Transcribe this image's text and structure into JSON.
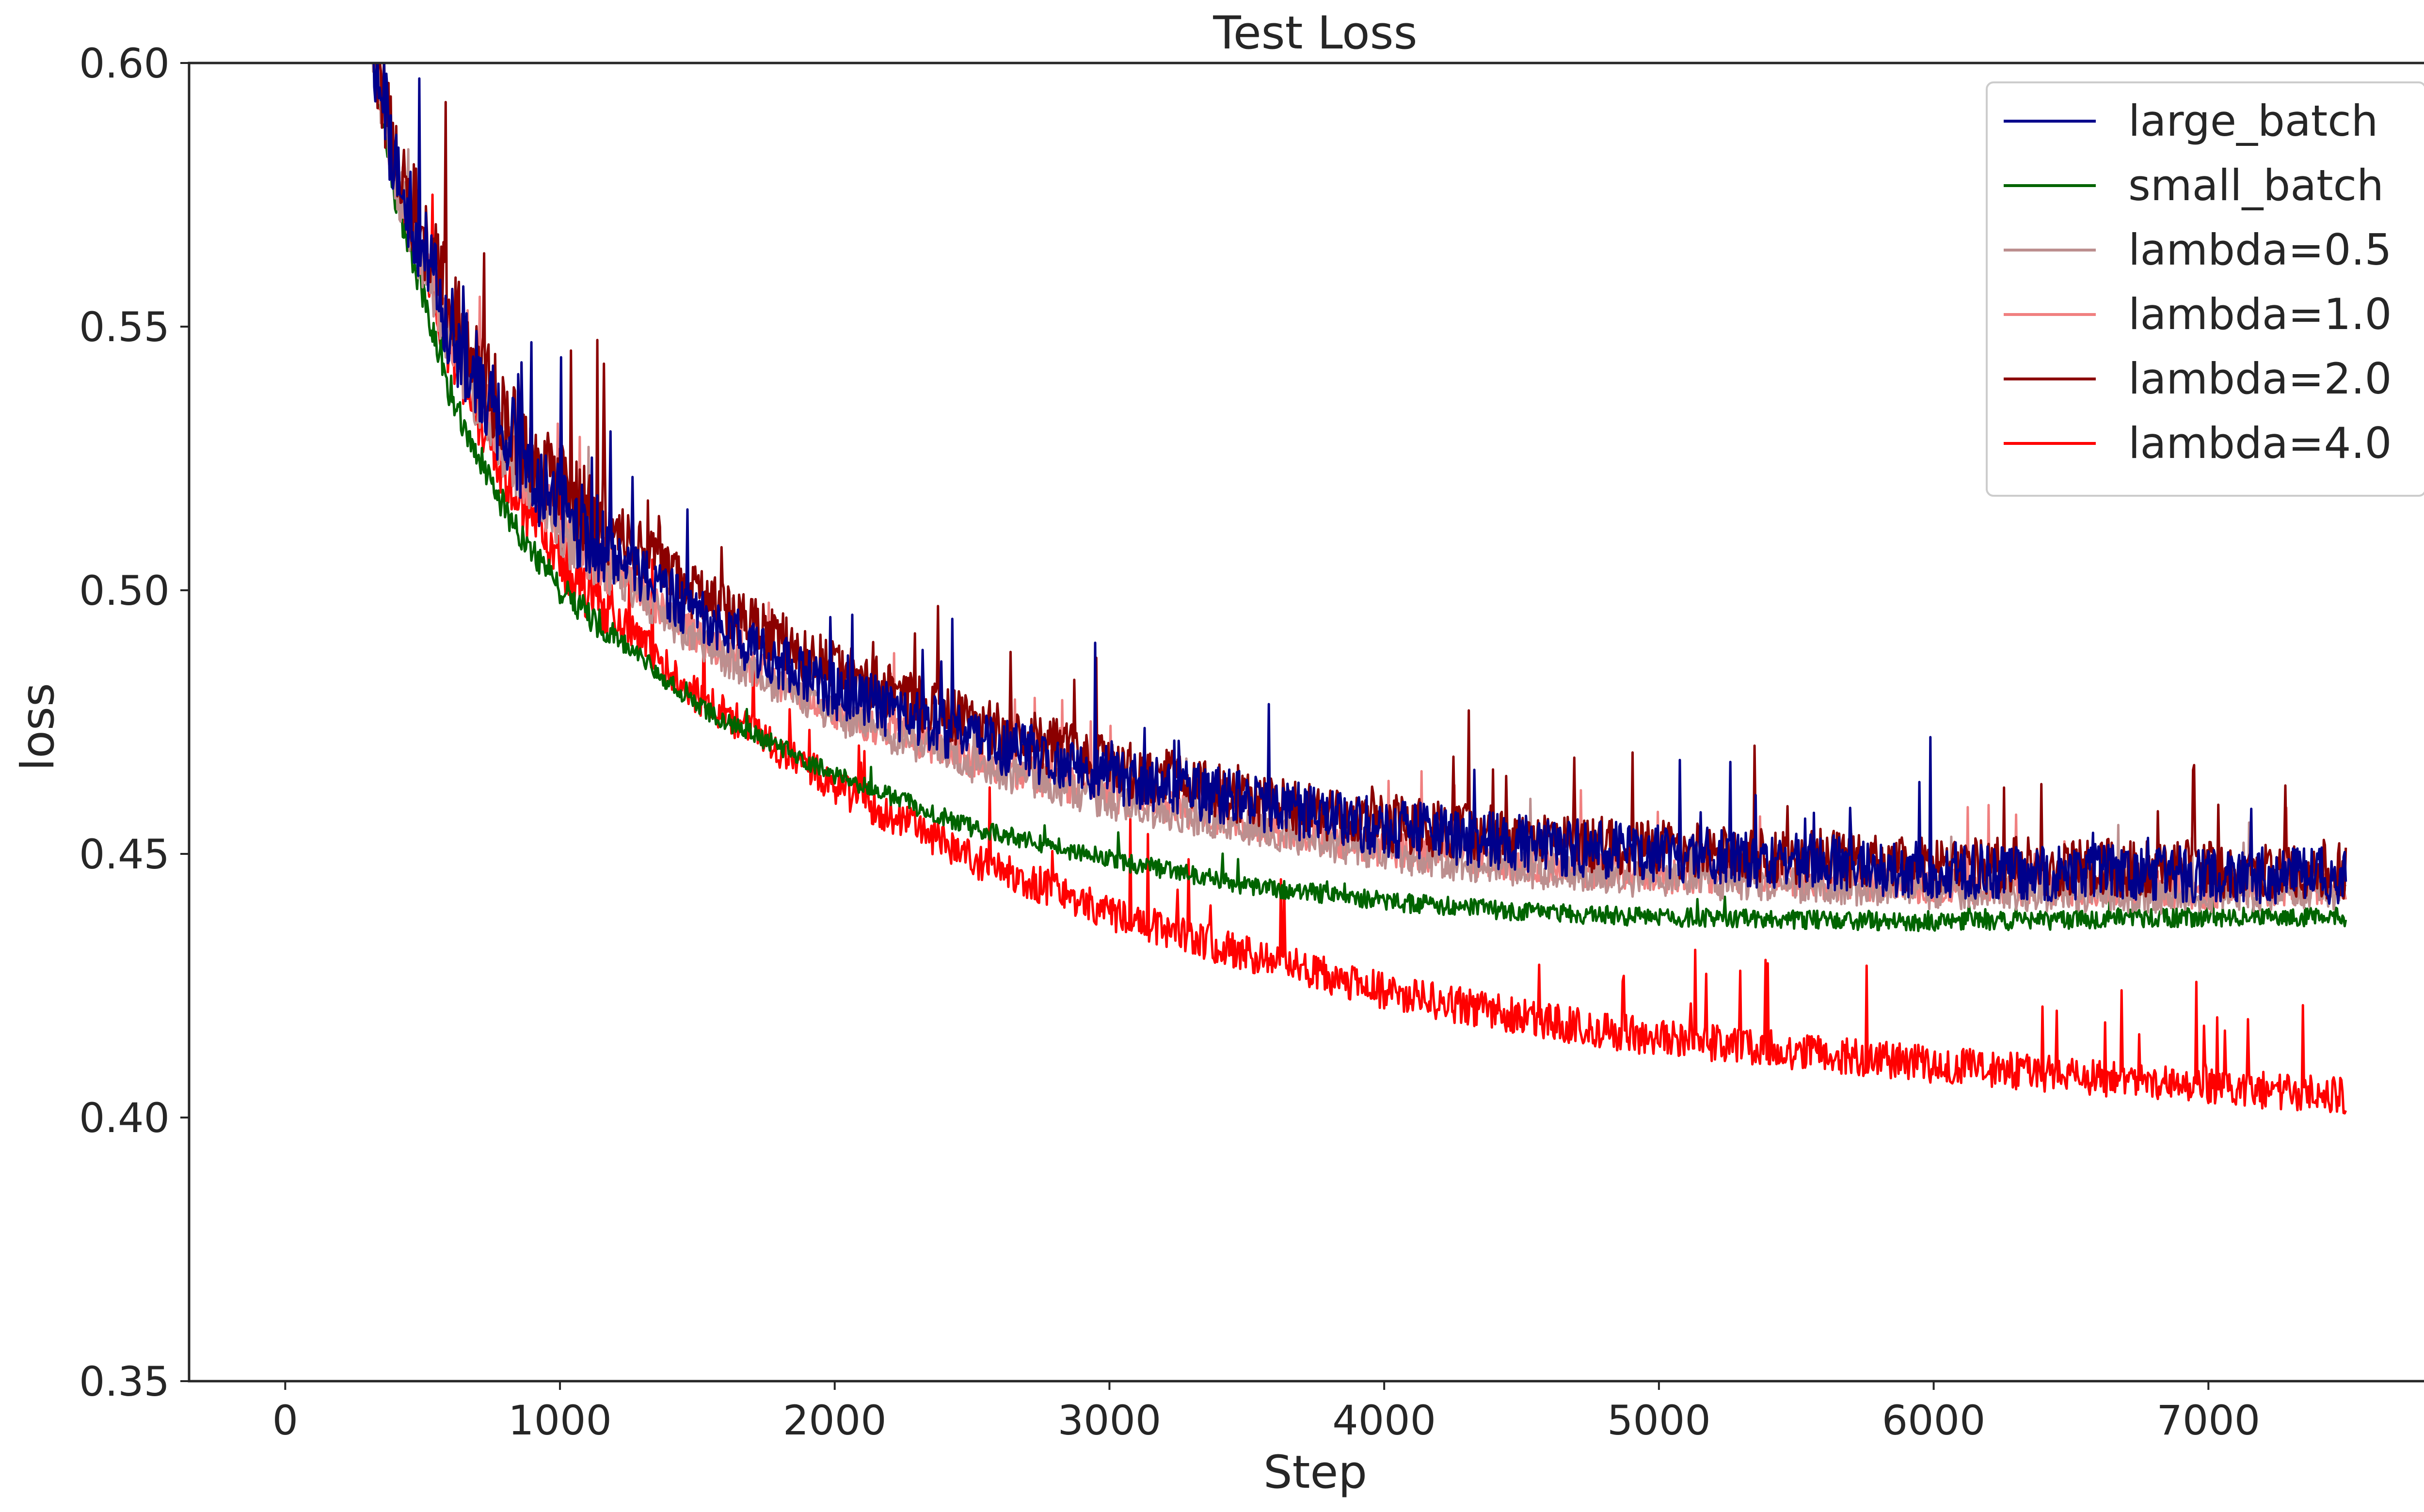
{
  "chart_data": {
    "type": "line",
    "title": "Test Loss",
    "xlabel": "Step",
    "ylabel": "loss",
    "xlim": [
      -350,
      7850
    ],
    "ylim": [
      0.35,
      0.6
    ],
    "xticks": [
      0,
      1000,
      2000,
      3000,
      4000,
      5000,
      6000,
      7000
    ],
    "yticks": [
      0.35,
      0.4,
      0.45,
      0.5,
      0.55,
      0.6
    ],
    "grid": false,
    "legend": "top-right",
    "series": [
      {
        "name": "large_batch",
        "color": "#00008b",
        "noise": 0.0055,
        "spike": 0.02,
        "points": [
          [
            280,
            0.615
          ],
          [
            400,
            0.58
          ],
          [
            600,
            0.55
          ],
          [
            800,
            0.53
          ],
          [
            1000,
            0.515
          ],
          [
            1500,
            0.495
          ],
          [
            2000,
            0.481
          ],
          [
            2500,
            0.472
          ],
          [
            3000,
            0.465
          ],
          [
            3500,
            0.46
          ],
          [
            4000,
            0.455
          ],
          [
            4500,
            0.452
          ],
          [
            5000,
            0.45
          ],
          [
            6000,
            0.447
          ],
          [
            7000,
            0.446
          ],
          [
            7500,
            0.446
          ]
        ]
      },
      {
        "name": "small_batch",
        "color": "#006400",
        "noise": 0.0018,
        "spike": 0.004,
        "points": [
          [
            280,
            0.615
          ],
          [
            400,
            0.575
          ],
          [
            600,
            0.537
          ],
          [
            800,
            0.515
          ],
          [
            1000,
            0.5
          ],
          [
            1500,
            0.478
          ],
          [
            2000,
            0.465
          ],
          [
            2500,
            0.455
          ],
          [
            3000,
            0.449
          ],
          [
            3500,
            0.444
          ],
          [
            4000,
            0.441
          ],
          [
            4500,
            0.439
          ],
          [
            5000,
            0.438
          ],
          [
            6000,
            0.437
          ],
          [
            7000,
            0.438
          ],
          [
            7500,
            0.438
          ]
        ]
      },
      {
        "name": "lambda=0.5",
        "color": "#bc8f8f",
        "noise": 0.0035,
        "spike": 0.012,
        "points": [
          [
            280,
            0.615
          ],
          [
            400,
            0.578
          ],
          [
            600,
            0.546
          ],
          [
            800,
            0.526
          ],
          [
            1000,
            0.511
          ],
          [
            1500,
            0.49
          ],
          [
            2000,
            0.476
          ],
          [
            2500,
            0.467
          ],
          [
            3000,
            0.46
          ],
          [
            3500,
            0.455
          ],
          [
            4000,
            0.45
          ],
          [
            4500,
            0.447
          ],
          [
            5000,
            0.445
          ],
          [
            6000,
            0.443
          ],
          [
            7000,
            0.442
          ],
          [
            7500,
            0.443
          ]
        ]
      },
      {
        "name": "lambda=1.0",
        "color": "#f08080",
        "noise": 0.0035,
        "spike": 0.015,
        "points": [
          [
            280,
            0.615
          ],
          [
            400,
            0.579
          ],
          [
            600,
            0.548
          ],
          [
            800,
            0.527
          ],
          [
            1000,
            0.512
          ],
          [
            1500,
            0.491
          ],
          [
            2000,
            0.477
          ],
          [
            2500,
            0.468
          ],
          [
            3000,
            0.461
          ],
          [
            3500,
            0.456
          ],
          [
            4000,
            0.451
          ],
          [
            4500,
            0.448
          ],
          [
            5000,
            0.446
          ],
          [
            6000,
            0.444
          ],
          [
            7000,
            0.443
          ],
          [
            7500,
            0.444
          ]
        ]
      },
      {
        "name": "lambda=2.0",
        "color": "#8b0000",
        "noise": 0.0055,
        "spike": 0.022,
        "points": [
          [
            280,
            0.615
          ],
          [
            400,
            0.582
          ],
          [
            600,
            0.554
          ],
          [
            800,
            0.533
          ],
          [
            1000,
            0.52
          ],
          [
            1500,
            0.499
          ],
          [
            2000,
            0.485
          ],
          [
            2500,
            0.475
          ],
          [
            3000,
            0.467
          ],
          [
            3500,
            0.461
          ],
          [
            4000,
            0.456
          ],
          [
            4500,
            0.453
          ],
          [
            5000,
            0.451
          ],
          [
            6000,
            0.448
          ],
          [
            7000,
            0.447
          ],
          [
            7500,
            0.447
          ]
        ]
      },
      {
        "name": "lambda=4.0",
        "color": "#ff0000",
        "noise": 0.0035,
        "spike": 0.018,
        "points": [
          [
            280,
            0.615
          ],
          [
            400,
            0.578
          ],
          [
            600,
            0.545
          ],
          [
            800,
            0.522
          ],
          [
            1000,
            0.505
          ],
          [
            1500,
            0.48
          ],
          [
            2000,
            0.463
          ],
          [
            2500,
            0.449
          ],
          [
            3000,
            0.439
          ],
          [
            3500,
            0.431
          ],
          [
            4000,
            0.424
          ],
          [
            4500,
            0.419
          ],
          [
            5000,
            0.415
          ],
          [
            6000,
            0.41
          ],
          [
            7000,
            0.406
          ],
          [
            7500,
            0.404
          ]
        ]
      }
    ]
  }
}
